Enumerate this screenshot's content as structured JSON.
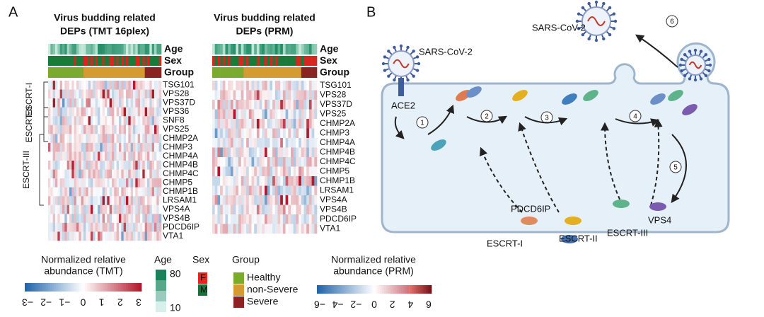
{
  "panel_a": {
    "label": "A",
    "heatmaps": [
      {
        "title": [
          "Virus budding related",
          "DEPs (TMT 16plex)"
        ],
        "genes": [
          "TSG101",
          "VPS28",
          "VPS37D",
          "VPS36",
          "SNF8",
          "VPS25",
          "CHMP2A",
          "CHMP3",
          "CHMP4A",
          "CHMP4B",
          "CHMP4C",
          "CHMP5",
          "CHMP1B",
          "LRSAM1",
          "VPS4A",
          "VPS4B",
          "PDCD6IP",
          "VTA1"
        ]
      },
      {
        "title": [
          "Virus budding related",
          "DEPs (PRM)"
        ],
        "genes": [
          "TSG101",
          "VPS28",
          "VPS37D",
          "VPS25",
          "CHMP2A",
          "CHMP3",
          "CHMP4A",
          "CHMP4B",
          "CHMP4C",
          "CHMP5",
          "CHMP1B",
          "LRSAM1",
          "VPS4A",
          "VPS4B",
          "PDCD6IP",
          "VTA1"
        ]
      }
    ],
    "annotations": [
      "Age",
      "Sex",
      "Group"
    ],
    "escrt": [
      "ESCRT-I",
      "ESCRT-II",
      "ESCRT-III"
    ],
    "legend_tmt": {
      "title": [
        "Normalized relative",
        "abundance (TMT)"
      ],
      "ticks": [
        "−3",
        "−2",
        "−1",
        "0",
        "1",
        "2",
        "3"
      ]
    },
    "legend_age": {
      "title": "Age",
      "ticks": [
        "80",
        "10"
      ]
    },
    "legend_sex": {
      "title": "Sex",
      "items": [
        "F",
        "M"
      ]
    },
    "legend_group": {
      "title": "Group",
      "items": [
        "Healthy",
        "non-Severe",
        "Severe"
      ]
    },
    "legend_prm": {
      "title": [
        "Normalized relative",
        "abundance (PRM)"
      ],
      "ticks": [
        "−6",
        "−4",
        "−2",
        "0",
        "2",
        "4",
        "6"
      ]
    }
  },
  "panel_b": {
    "label": "B",
    "virus_top": "SARS-CoV-2",
    "virus_left": "SARS-CoV-2",
    "receptor": "ACE2",
    "steps": [
      "1",
      "2",
      "3",
      "4",
      "5",
      "6"
    ],
    "proteins": {
      "pdcd6ip": "PDCD6IP",
      "escrt1": "ESCRT-I",
      "escrt2": "ESCRT-II",
      "escrt3": "ESCRT-III",
      "vps4": "VPS4"
    }
  }
}
